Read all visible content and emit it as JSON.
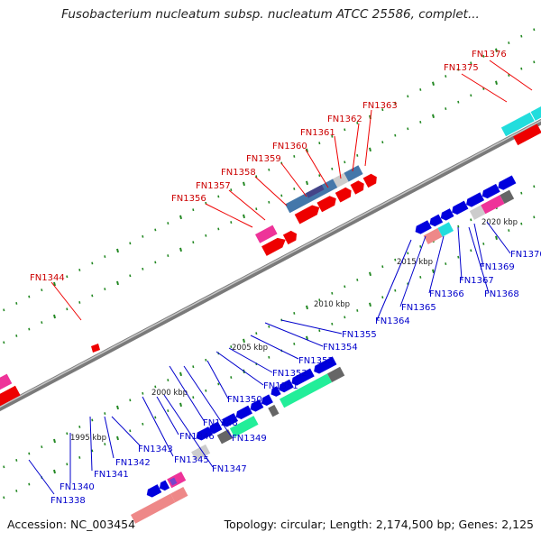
{
  "title": "Fusobacterium nucleatum subsp. nucleatum ATCC 25586, complet...",
  "footer": {
    "accession": "Accession: NC_003454",
    "summary": "Topology: circular; Length: 2,174,500 bp; Genes: 2,125"
  },
  "colors": {
    "forward_label": "#cc0000",
    "reverse_label": "#0000cc",
    "backbone": "#808080",
    "blue": "#0000dd",
    "red": "#ee0000",
    "pink": "#ee3399",
    "salmon": "#ee8888",
    "cyan": "#22dddd",
    "steel": "#4477aa",
    "green": "#22ee99",
    "grey": "#666666",
    "lightgrey": "#cccccc",
    "tick": "#228822"
  },
  "kbp_markers": [
    "1995 kbp",
    "2000 kbp",
    "2005 kbp",
    "2010 kbp",
    "2015 kbp",
    "2020 kbp"
  ],
  "forward_genes": [
    "FN1344",
    "FN1356",
    "FN1357",
    "FN1358",
    "FN1359",
    "FN1360",
    "FN1361",
    "FN1362",
    "FN1363",
    "FN1375",
    "FN1376"
  ],
  "reverse_genes": [
    "FN1338",
    "FN1340",
    "FN1341",
    "FN1342",
    "FN1343",
    "FN1345",
    "FN1346",
    "FN1347",
    "FN1348",
    "FN1349",
    "FN1350",
    "FN1351",
    "FN1352",
    "FN1353",
    "FN1354",
    "FN1355",
    "FN1364",
    "FN1365",
    "FN1366",
    "FN1367",
    "FN1368",
    "FN1369",
    "FN1370"
  ]
}
